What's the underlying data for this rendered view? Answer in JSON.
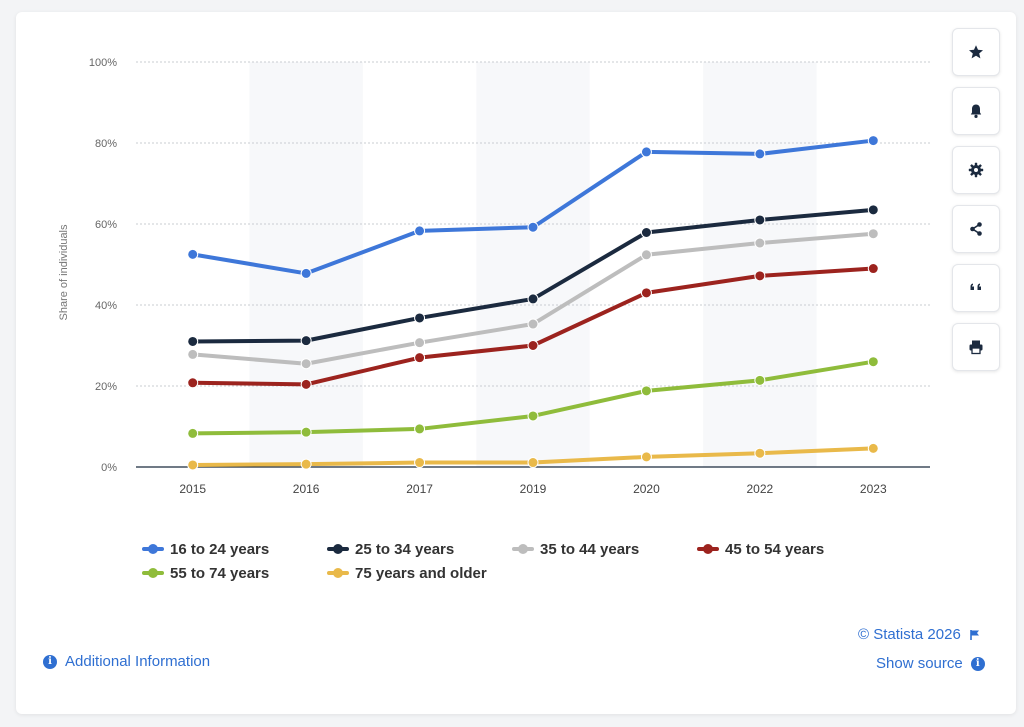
{
  "chart_data": {
    "type": "line",
    "ylabel": "Share of individuals",
    "xlabel": "",
    "categories": [
      "2015",
      "2016",
      "2017",
      "2019",
      "2020",
      "2022",
      "2023"
    ],
    "ylim": [
      0,
      100
    ],
    "yticks": [
      "0%",
      "20%",
      "40%",
      "60%",
      "80%",
      "100%"
    ],
    "grid": true,
    "legend_position": "bottom",
    "series": [
      {
        "name": "16 to 24 years",
        "color": "#3e77d9",
        "values": [
          52.5,
          47.8,
          58.3,
          59.2,
          77.8,
          77.3,
          80.6
        ]
      },
      {
        "name": "25 to 34 years",
        "color": "#1b2a3f",
        "values": [
          31.0,
          31.2,
          36.8,
          41.5,
          57.9,
          61.0,
          63.5
        ]
      },
      {
        "name": "35 to 44 years",
        "color": "#bdbdbd",
        "values": [
          27.8,
          25.5,
          30.7,
          35.3,
          52.4,
          55.3,
          57.6
        ]
      },
      {
        "name": "45 to 54 years",
        "color": "#9c231e",
        "values": [
          20.8,
          20.4,
          27.0,
          30.0,
          43.0,
          47.2,
          49.0
        ]
      },
      {
        "name": "55 to 74 years",
        "color": "#8fbc3b",
        "values": [
          8.3,
          8.6,
          9.4,
          12.6,
          18.8,
          21.4,
          26.0
        ]
      },
      {
        "name": "75 years and older",
        "color": "#e9b94a",
        "values": [
          0.5,
          0.7,
          1.1,
          1.1,
          2.5,
          3.4,
          4.6
        ]
      }
    ]
  },
  "sidebar": {
    "buttons": [
      {
        "icon": "star-icon",
        "name": "favorite-button"
      },
      {
        "icon": "bell-icon",
        "name": "notification-button"
      },
      {
        "icon": "gear-icon",
        "name": "settings-button"
      },
      {
        "icon": "share-icon",
        "name": "share-button"
      },
      {
        "icon": "quote-icon",
        "name": "cite-button"
      },
      {
        "icon": "print-icon",
        "name": "print-button"
      }
    ]
  },
  "footer": {
    "copyright": "© Statista 2026",
    "show_source": "Show source",
    "additional_info": "Additional Information"
  }
}
